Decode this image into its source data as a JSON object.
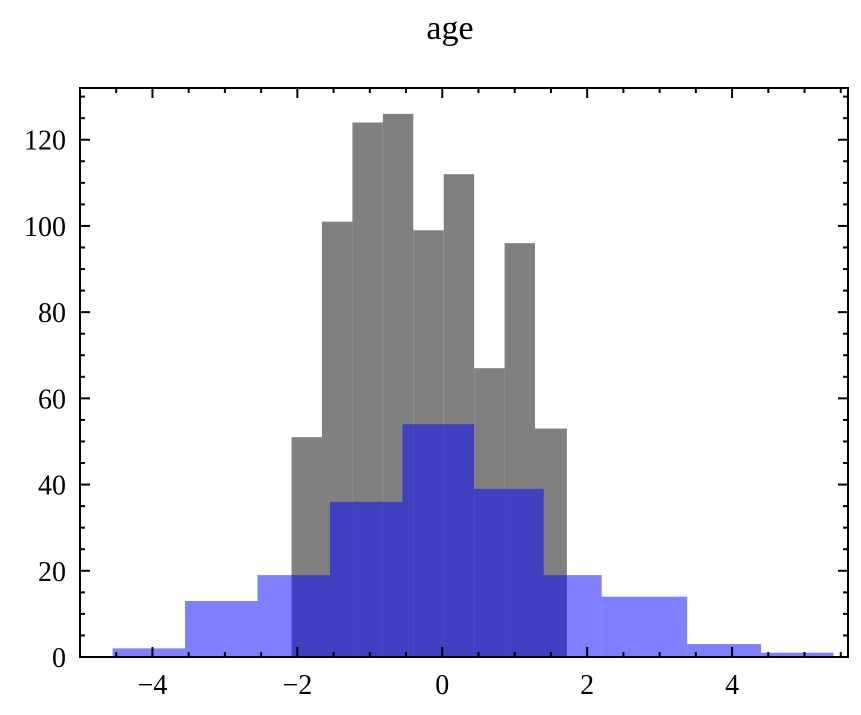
{
  "chart_data": {
    "type": "bar",
    "title": "age",
    "xlabel": "",
    "ylabel": "",
    "xlim": [
      -5.0,
      5.6
    ],
    "ylim": [
      0,
      132
    ],
    "grid": false,
    "x_ticks": [
      -4,
      -2,
      0,
      2,
      4
    ],
    "y_ticks": [
      0,
      20,
      40,
      60,
      80,
      100,
      120
    ],
    "x_tick_labels": [
      "−4",
      "−2",
      "0",
      "2",
      "4"
    ],
    "y_tick_labels": [
      "0",
      "20",
      "40",
      "60",
      "80",
      "100",
      "120"
    ],
    "series": [
      {
        "color": "#808080",
        "opacity": 1.0,
        "bin_edges": [
          -2.08,
          -1.66,
          -1.24,
          -0.82,
          -0.4,
          0.02,
          0.44,
          0.86,
          1.28,
          1.72
        ],
        "values": [
          51,
          101,
          124,
          126,
          99,
          112,
          67,
          96,
          53
        ]
      },
      {
        "color": "#0000ff",
        "opacity": 0.5,
        "bin_edges": [
          -4.55,
          -3.55,
          -2.55,
          -2.08,
          -1.55,
          -0.55,
          0.44,
          1.4,
          2.2,
          3.38,
          4.4,
          5.4
        ],
        "values": [
          2,
          13,
          19,
          19,
          36,
          54,
          39,
          19,
          14,
          3,
          1
        ]
      }
    ]
  }
}
